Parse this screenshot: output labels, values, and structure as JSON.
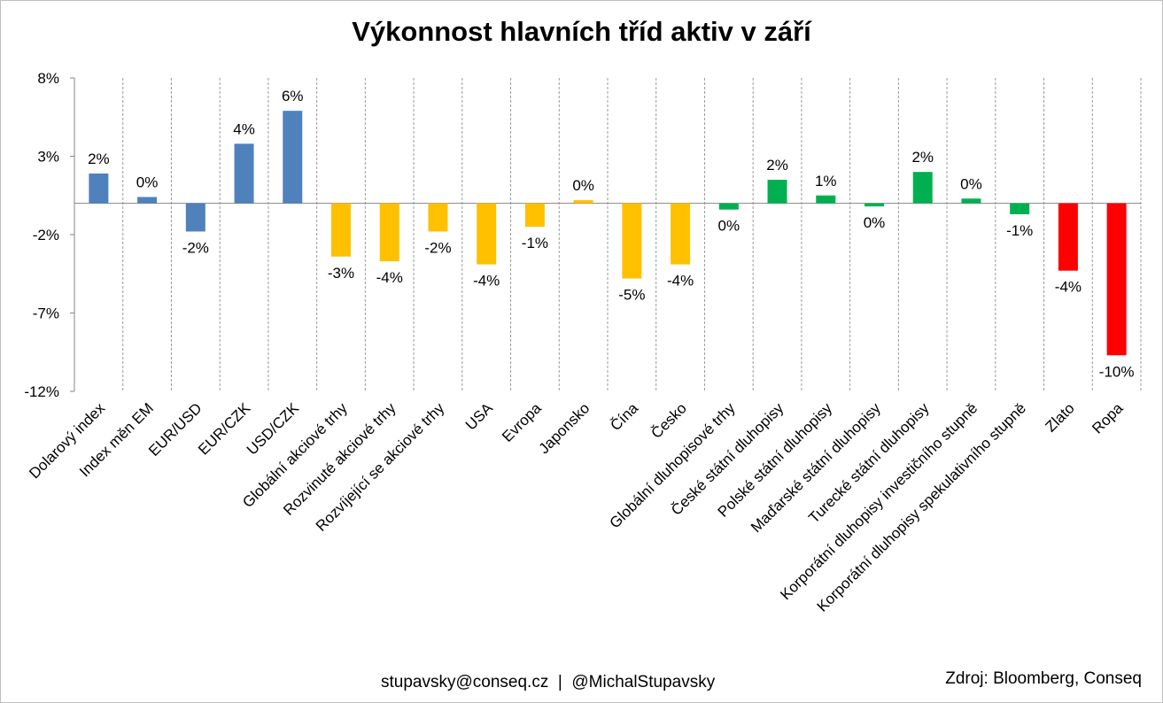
{
  "title": "Výkonnost hlavních tříd aktiv v září",
  "footer": {
    "contact": "stupavsky@conseq.cz  |  @MichalStupavsky",
    "source": "Zdroj: Bloomberg, Conseq"
  },
  "chart_data": {
    "type": "bar",
    "title": "Výkonnost hlavních tříd aktiv v září",
    "xlabel": "",
    "ylabel": "",
    "ylim": [
      -12,
      8
    ],
    "y_ticks": [
      8,
      3,
      -2,
      -7,
      -12
    ],
    "y_tick_labels": [
      "8%",
      "3%",
      "-2%",
      "-7%",
      "-12%"
    ],
    "grid": "vertical dashed",
    "legend": "none",
    "categories": [
      "Dolarový index",
      "Index měn EM",
      "EUR/USD",
      "EUR/CZK",
      "USD/CZK",
      "Globální akciové trhy",
      "Rozvinuté akciové trhy",
      "Rozvíjející se akciové trhy",
      "USA",
      "Evropa",
      "Japonsko",
      "Čína",
      "Česko",
      "Globální dluhopisové trhy",
      "České státní dluhopisy",
      "Polské státní dluhopisy",
      "Maďarské státní dluhopisy",
      "Turecké státní dluhopisy",
      "Korporátní dluhopisy investičního stupně",
      "Korporátní dluhopisy spekulativního stupně",
      "Zlato",
      "Ropa"
    ],
    "values": [
      1.9,
      0.4,
      -1.8,
      3.8,
      5.9,
      -3.4,
      -3.7,
      -1.8,
      -3.9,
      -1.5,
      0.2,
      -4.8,
      -3.9,
      -0.4,
      1.5,
      0.5,
      -0.2,
      2.0,
      0.3,
      -0.7,
      -4.3,
      -9.7
    ],
    "data_labels": [
      "2%",
      "0%",
      "-2%",
      "4%",
      "6%",
      "-3%",
      "-4%",
      "-2%",
      "-4%",
      "-1%",
      "0%",
      "-5%",
      "-4%",
      "0%",
      "2%",
      "1%",
      "0%",
      "2%",
      "0%",
      "-1%",
      "-4%",
      "-10%"
    ],
    "colors": [
      "#4f81bd",
      "#4f81bd",
      "#4f81bd",
      "#4f81bd",
      "#4f81bd",
      "#ffc000",
      "#ffc000",
      "#ffc000",
      "#ffc000",
      "#ffc000",
      "#ffc000",
      "#ffc000",
      "#ffc000",
      "#00b050",
      "#00b050",
      "#00b050",
      "#00b050",
      "#00b050",
      "#00b050",
      "#00b050",
      "#ff0000",
      "#ff0000"
    ]
  }
}
